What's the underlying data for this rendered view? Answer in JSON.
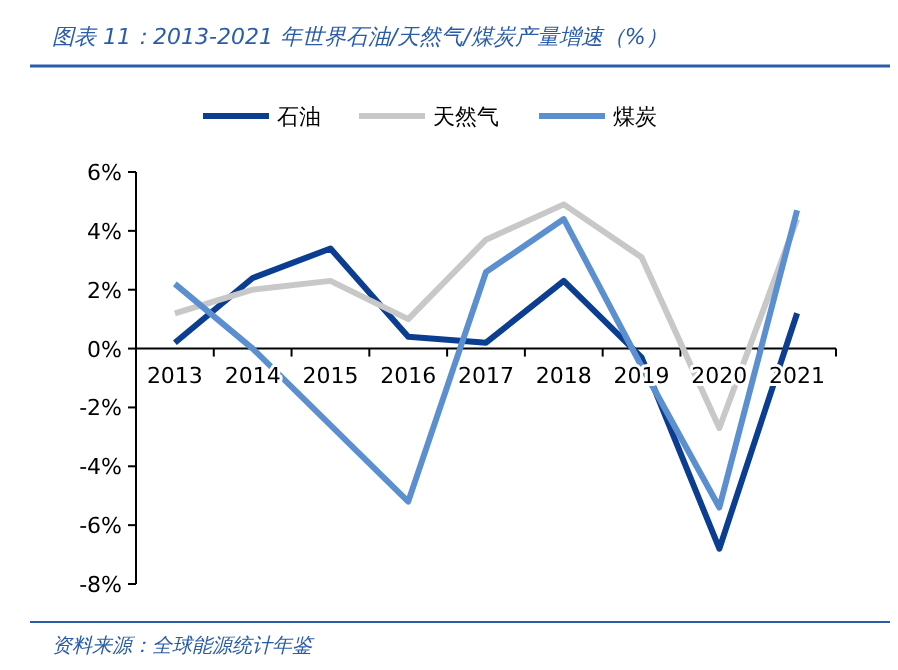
{
  "chart_data": {
    "type": "line",
    "title": "图表 11：2013-2021 年世界石油/天然气/煤炭产量增速（%）",
    "categories": [
      "2013",
      "2014",
      "2015",
      "2016",
      "2017",
      "2018",
      "2019",
      "2020",
      "2021"
    ],
    "series": [
      {
        "name": "石油",
        "color": "#0b3d91",
        "values": [
          0.2,
          2.4,
          3.4,
          0.4,
          0.2,
          2.3,
          -0.3,
          -6.8,
          1.2
        ]
      },
      {
        "name": "天然气",
        "color": "#c8c8c8",
        "values": [
          1.2,
          2.0,
          2.3,
          1.0,
          3.7,
          4.9,
          3.1,
          -2.7,
          4.4
        ]
      },
      {
        "name": "煤炭",
        "color": "#5b8fd0",
        "values": [
          2.2,
          0.0,
          -2.6,
          -5.2,
          2.6,
          4.4,
          -0.6,
          -5.4,
          4.7
        ]
      }
    ],
    "ylim": [
      -8,
      6
    ],
    "yticks": [
      {
        "value": -8,
        "label": "-8%"
      },
      {
        "value": -6,
        "label": "-6%"
      },
      {
        "value": -4,
        "label": "-4%"
      },
      {
        "value": -2,
        "label": "-2%"
      },
      {
        "value": 0,
        "label": "0%"
      },
      {
        "value": 2,
        "label": "2%"
      },
      {
        "value": 4,
        "label": "4%"
      },
      {
        "value": 6,
        "label": "6%"
      }
    ],
    "legend": "top",
    "annotations": [
      "资料来源：全球能源统计年鉴"
    ]
  }
}
